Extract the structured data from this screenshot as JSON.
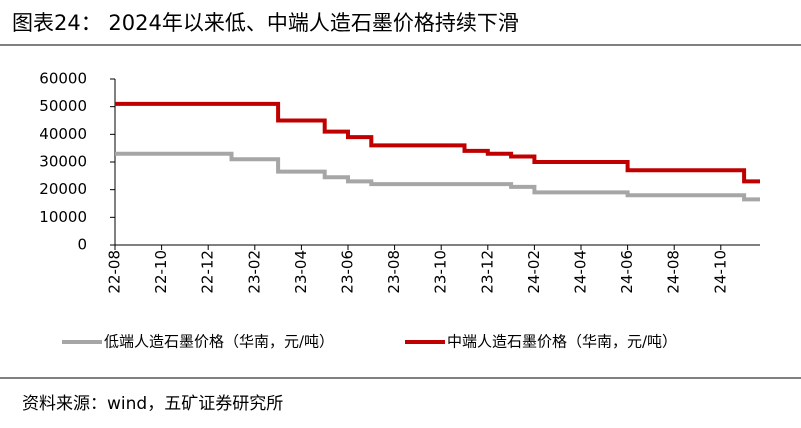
{
  "header": {
    "title": "图表24：  2024年以来低、中端人造石墨价格持续下滑"
  },
  "chart_data": {
    "type": "line",
    "step": true,
    "categories": [
      "22-08",
      null,
      "22-10",
      null,
      "22-12",
      null,
      "23-02",
      null,
      "23-04",
      null,
      "23-06",
      null,
      "23-08",
      null,
      "23-10",
      null,
      "23-12",
      null,
      "24-02",
      null,
      "24-04",
      null,
      "24-06",
      null,
      "24-08",
      null,
      "24-10",
      null
    ],
    "series": [
      {
        "name": "低端人造石墨价格（华南，元/吨）",
        "color": "#a6a6a6",
        "values": [
          33000,
          33000,
          33000,
          33000,
          33000,
          31000,
          31000,
          26500,
          26500,
          24500,
          23000,
          22000,
          22000,
          22000,
          22000,
          22000,
          22000,
          21000,
          19000,
          19000,
          19000,
          19000,
          18000,
          18000,
          18000,
          18000,
          18000,
          16500
        ]
      },
      {
        "name": "中端人造石墨价格（华南，元/吨）",
        "color": "#c00000",
        "values": [
          51000,
          51000,
          51000,
          51000,
          51000,
          51000,
          51000,
          45000,
          45000,
          41000,
          39000,
          36000,
          36000,
          36000,
          36000,
          34000,
          33000,
          32000,
          30000,
          30000,
          30000,
          30000,
          27000,
          27000,
          27000,
          27000,
          27000,
          23000
        ]
      }
    ],
    "ylim": [
      0,
      60000
    ],
    "yticks": [
      0,
      10000,
      20000,
      30000,
      40000,
      50000,
      60000
    ],
    "grid": false
  },
  "footer": {
    "source": "资料来源：wind，五矿证券研究所"
  }
}
